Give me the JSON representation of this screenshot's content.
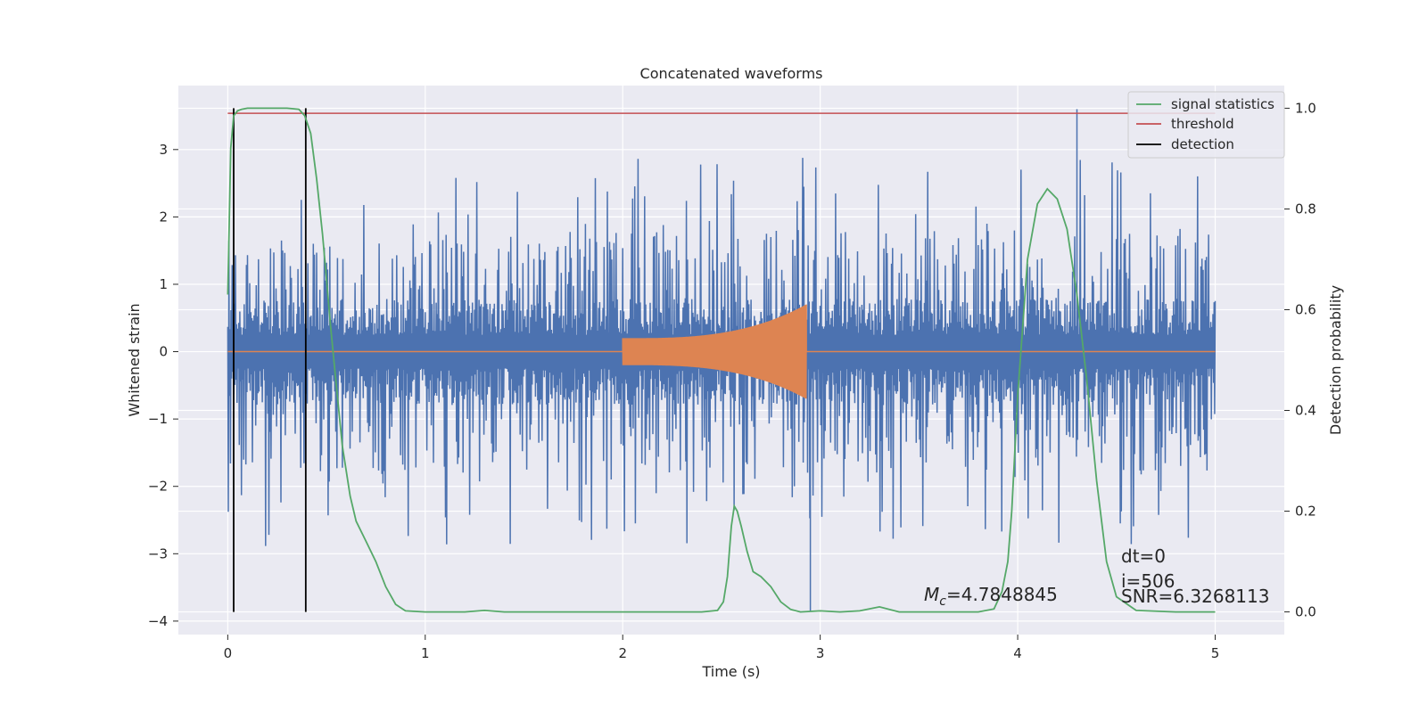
{
  "chart_data": {
    "type": "line",
    "title": "Concatenated waveforms",
    "xlabel": "Time (s)",
    "ylabel": "Whitened strain",
    "y2label": "Detection probability",
    "xlim": [
      -0.25,
      5.35
    ],
    "ylim": [
      -4.2,
      3.95
    ],
    "y2lim": [
      -0.045,
      1.045
    ],
    "xticks": [
      0,
      1,
      2,
      3,
      4,
      5
    ],
    "yticks": [
      -4,
      -3,
      -2,
      -1,
      0,
      1,
      2,
      3
    ],
    "y2ticks": [
      0.0,
      0.2,
      0.4,
      0.6,
      0.8,
      1.0
    ],
    "xticklabels": [
      "0",
      "1",
      "2",
      "3",
      "4",
      "5"
    ],
    "yticklabels": [
      "−4",
      "−3",
      "−2",
      "−1",
      "0",
      "1",
      "2",
      "3"
    ],
    "y2ticklabels": [
      "0.0",
      "0.2",
      "0.4",
      "0.6",
      "0.8",
      "1.0"
    ],
    "grid": true,
    "legend_position": "top-right",
    "legend": [
      {
        "label": "signal statistics",
        "color": "#55a868"
      },
      {
        "label": "threshold",
        "color": "#c44e52"
      },
      {
        "label": "detection",
        "color": "#000000"
      }
    ],
    "colors": {
      "strain": "#4c72b0",
      "template": "#dd8452",
      "statistic": "#55a868",
      "threshold": "#c44e52",
      "detection": "#000000",
      "plot_bg": "#eaeaf2",
      "grid": "#ffffff"
    },
    "strain": {
      "x_range": [
        0,
        5
      ],
      "amplitude_range": [
        -3.85,
        3.6
      ],
      "peak_max": {
        "x": 4.3,
        "y": 3.6
      },
      "peak_min": {
        "x": 2.95,
        "y": -3.85
      }
    },
    "template": {
      "x_range": [
        2.0,
        2.93
      ],
      "peak_amplitude": 0.7
    },
    "threshold": {
      "x": [
        0,
        5
      ],
      "y": 0.99
    },
    "detections": [
      0.03,
      0.395
    ],
    "signal_statistics": {
      "x": [
        0.0,
        0.015,
        0.03,
        0.05,
        0.07,
        0.1,
        0.2,
        0.3,
        0.36,
        0.39,
        0.42,
        0.45,
        0.48,
        0.5,
        0.52,
        0.55,
        0.58,
        0.6,
        0.62,
        0.65,
        0.7,
        0.75,
        0.8,
        0.85,
        0.9,
        1.0,
        1.2,
        1.3,
        1.4,
        1.6,
        1.8,
        2.0,
        2.2,
        2.4,
        2.48,
        2.51,
        2.53,
        2.55,
        2.565,
        2.58,
        2.6,
        2.63,
        2.66,
        2.7,
        2.75,
        2.8,
        2.85,
        2.9,
        3.0,
        3.1,
        3.2,
        3.3,
        3.4,
        3.6,
        3.8,
        3.88,
        3.92,
        3.95,
        3.97,
        4.0,
        4.05,
        4.1,
        4.15,
        4.2,
        4.25,
        4.3,
        4.35,
        4.4,
        4.45,
        4.5,
        4.6,
        4.8,
        5.0
      ],
      "y": [
        0.63,
        0.92,
        0.985,
        0.995,
        0.998,
        1.0,
        1.0,
        1.0,
        0.998,
        0.985,
        0.95,
        0.86,
        0.75,
        0.66,
        0.57,
        0.45,
        0.33,
        0.28,
        0.23,
        0.18,
        0.14,
        0.1,
        0.05,
        0.015,
        0.002,
        0.0,
        0.0,
        0.003,
        0.0,
        0.0,
        0.0,
        0.0,
        0.0,
        0.0,
        0.003,
        0.02,
        0.07,
        0.17,
        0.21,
        0.2,
        0.17,
        0.12,
        0.08,
        0.07,
        0.05,
        0.02,
        0.005,
        0.0,
        0.002,
        0.0,
        0.002,
        0.01,
        0.0,
        0.0,
        0.0,
        0.006,
        0.04,
        0.1,
        0.2,
        0.43,
        0.7,
        0.81,
        0.84,
        0.82,
        0.76,
        0.63,
        0.46,
        0.26,
        0.1,
        0.03,
        0.003,
        0.0,
        0.0
      ]
    },
    "annotations": {
      "mc_symbol": "M",
      "mc_subscript": "c",
      "mc_value": "=4.7848845",
      "dt": "dt=0",
      "i": "i=506",
      "snr": "SNR=6.3268113"
    }
  }
}
